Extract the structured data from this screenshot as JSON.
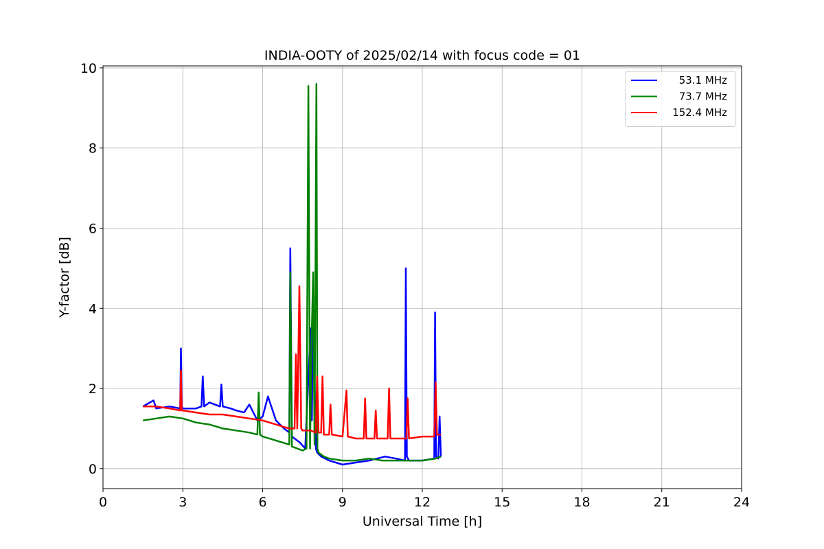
{
  "chart_data": {
    "type": "line",
    "title": "INDIA-OOTY of 2025/02/14 with focus code = 01",
    "xlabel": "Universal Time [h]",
    "ylabel": "Y-factor [dB]",
    "xlim": [
      0,
      24
    ],
    "ylim": [
      -0.5,
      10.05
    ],
    "xticks": [
      0,
      3,
      6,
      9,
      12,
      15,
      18,
      21,
      24
    ],
    "xtick_labels": [
      "0",
      "3",
      "6",
      "9",
      "12",
      "15",
      "18",
      "21",
      "24"
    ],
    "yticks": [
      0,
      2,
      4,
      6,
      8,
      10
    ],
    "ytick_labels": [
      "0",
      "2",
      "4",
      "6",
      "8",
      "10"
    ],
    "grid": true,
    "legend_position": "top-right",
    "series": [
      {
        "name": "53.1 MHz",
        "color": "#0000ff",
        "x": [
          1.5,
          1.9,
          2.0,
          2.5,
          2.9,
          2.93,
          2.96,
          3.0,
          3.5,
          3.7,
          3.75,
          3.8,
          4.0,
          4.2,
          4.4,
          4.45,
          4.5,
          4.8,
          5.0,
          5.3,
          5.5,
          5.8,
          6.0,
          6.2,
          6.3,
          6.5,
          6.8,
          7.0,
          7.04,
          7.1,
          7.4,
          7.6,
          7.8,
          7.85,
          7.9,
          8.0,
          8.05,
          8.2,
          8.5,
          9.0,
          9.5,
          10.0,
          10.3,
          10.6,
          11.0,
          11.35,
          11.38,
          11.42,
          11.5,
          12.0,
          12.45,
          12.48,
          12.52,
          12.6,
          12.65,
          12.7
        ],
        "y": [
          1.55,
          1.7,
          1.5,
          1.55,
          1.5,
          3.0,
          1.55,
          1.5,
          1.5,
          1.55,
          2.3,
          1.55,
          1.65,
          1.6,
          1.55,
          2.1,
          1.55,
          1.5,
          1.45,
          1.4,
          1.6,
          1.2,
          1.3,
          1.8,
          1.6,
          1.2,
          1.0,
          0.9,
          5.5,
          0.8,
          0.65,
          0.5,
          3.5,
          1.2,
          4.2,
          0.5,
          0.4,
          0.3,
          0.2,
          0.1,
          0.15,
          0.2,
          0.25,
          0.3,
          0.25,
          0.2,
          5.0,
          0.3,
          0.2,
          0.2,
          0.25,
          3.9,
          0.3,
          0.25,
          1.3,
          0.3
        ]
      },
      {
        "name": "73.7 MHz",
        "color": "#008000",
        "x": [
          1.5,
          2.0,
          2.5,
          3.0,
          3.5,
          4.0,
          4.5,
          5.0,
          5.5,
          5.8,
          5.85,
          5.9,
          6.0,
          6.5,
          7.0,
          7.04,
          7.1,
          7.3,
          7.5,
          7.65,
          7.72,
          7.78,
          7.85,
          7.9,
          7.95,
          8.02,
          8.06,
          8.1,
          8.3,
          8.5,
          9.0,
          9.5,
          10.0,
          10.5,
          11.0,
          11.5,
          12.0,
          12.5,
          12.7
        ],
        "y": [
          1.2,
          1.25,
          1.3,
          1.25,
          1.15,
          1.1,
          1.0,
          0.95,
          0.9,
          0.85,
          1.9,
          0.85,
          0.8,
          0.7,
          0.6,
          4.9,
          0.55,
          0.5,
          0.45,
          0.5,
          9.55,
          0.5,
          3.5,
          4.9,
          0.6,
          9.6,
          0.5,
          0.4,
          0.3,
          0.25,
          0.2,
          0.2,
          0.25,
          0.2,
          0.2,
          0.2,
          0.2,
          0.25,
          0.3
        ]
      },
      {
        "name": "152.4 MHz",
        "color": "#ff0000",
        "x": [
          1.5,
          2.0,
          2.5,
          2.9,
          2.93,
          2.96,
          3.0,
          3.5,
          4.0,
          4.5,
          5.0,
          5.5,
          6.0,
          6.5,
          7.0,
          7.2,
          7.25,
          7.3,
          7.38,
          7.45,
          7.5,
          7.8,
          8.0,
          8.05,
          8.1,
          8.2,
          8.25,
          8.3,
          8.5,
          8.55,
          8.6,
          9.0,
          9.15,
          9.2,
          9.5,
          9.8,
          9.85,
          9.9,
          10.2,
          10.25,
          10.3,
          10.7,
          10.75,
          10.8,
          11.0,
          11.4,
          11.45,
          11.5,
          12.0,
          12.45,
          12.5,
          12.55,
          12.7
        ],
        "y": [
          1.55,
          1.55,
          1.5,
          1.45,
          2.45,
          1.45,
          1.45,
          1.4,
          1.35,
          1.35,
          1.3,
          1.25,
          1.2,
          1.1,
          1.0,
          1.0,
          2.85,
          1.0,
          4.55,
          1.0,
          0.95,
          0.95,
          0.9,
          2.3,
          0.9,
          0.9,
          2.3,
          0.85,
          0.85,
          1.6,
          0.85,
          0.8,
          1.95,
          0.8,
          0.75,
          0.75,
          1.75,
          0.75,
          0.75,
          1.45,
          0.75,
          0.75,
          2.0,
          0.75,
          0.75,
          0.75,
          1.75,
          0.75,
          0.8,
          0.8,
          2.15,
          0.85,
          0.85
        ]
      }
    ]
  }
}
